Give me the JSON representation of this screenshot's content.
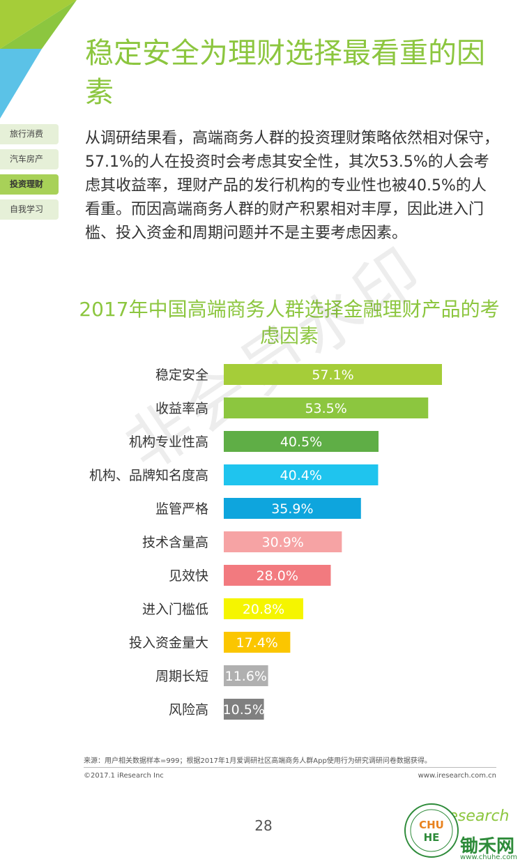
{
  "header": {
    "title": "稳定安全为理财选择最看重的因素"
  },
  "side_nav": {
    "items": [
      {
        "label": "旅行消费",
        "active": false
      },
      {
        "label": "汽车房产",
        "active": false
      },
      {
        "label": "投资理财",
        "active": true
      },
      {
        "label": "自我学习",
        "active": false
      }
    ]
  },
  "intro_text": "从调研结果看，高端商务人群的投资理财策略依然相对保守，57.1%的人在投资时会考虑其安全性，其次53.5%的人会考虑其收益率，理财产品的发行机构的专业性也被40.5%的人看重。而因高端商务人群的财产积累相对丰厚，因此进入门槛、投入资金和周期问题并不是主要考虑因素。",
  "watermark": "非会员水印",
  "chart_data": {
    "type": "bar",
    "orientation": "horizontal",
    "title": "2017年中国高端商务人群选择金融理财产品的考虑因素",
    "categories": [
      "稳定安全",
      "收益率高",
      "机构专业性高",
      "机构、品牌知名度高",
      "监管严格",
      "技术含量高",
      "见效快",
      "进入门槛低",
      "投入资金量大",
      "周期长短",
      "风险高"
    ],
    "values": [
      57.1,
      53.5,
      40.5,
      40.4,
      35.9,
      30.9,
      28.0,
      20.8,
      17.4,
      11.6,
      10.5
    ],
    "value_labels": [
      "57.1%",
      "53.5%",
      "40.5%",
      "40.4%",
      "35.9%",
      "30.9%",
      "28.0%",
      "20.8%",
      "17.4%",
      "11.6%",
      "10.5%"
    ],
    "colors": [
      "#a5cd39",
      "#8cc63f",
      "#5fae46",
      "#1fc4ee",
      "#0ea5dd",
      "#f6a3a4",
      "#f27a7f",
      "#f5f500",
      "#fbc600",
      "#b0b0b0",
      "#808080"
    ],
    "xlim": [
      0,
      100
    ],
    "grid": false,
    "legend": "none"
  },
  "footer": {
    "source": "来源：用户相关数据样本=999；根据2017年1月爱调研社区高端商务人群App使用行为研究调研问卷数据获得。",
    "copyright": "©2017.1 iResearch Inc",
    "website": "www.iresearch.com.cn",
    "page_number": "28"
  },
  "logos": {
    "iresearch": "iResearch",
    "chuhe_cn": "锄禾网",
    "chuhe_url": "www.chuhe.com",
    "seal_text": "CHUHE"
  },
  "colors": {
    "accent_green": "#8cc63f",
    "corner_blue": "#5bc2e7",
    "corner_green": "#a5cd39"
  }
}
